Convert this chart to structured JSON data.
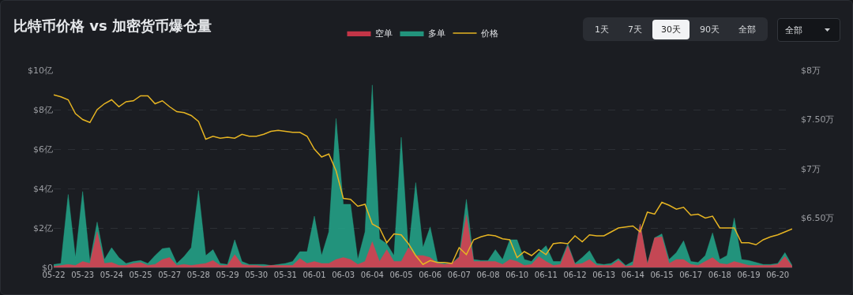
{
  "chart_data": {
    "type": "area",
    "title": "比特币价格 vs 加密货币爆仓量",
    "annotations": [
      "1天",
      "7天",
      "30天",
      "90天",
      "全部",
      "全部"
    ],
    "categories": [
      "05-22",
      null,
      null,
      null,
      "05-23",
      null,
      null,
      null,
      "05-24",
      null,
      null,
      null,
      "05-25",
      null,
      null,
      null,
      "05-27",
      null,
      null,
      null,
      "05-28",
      null,
      null,
      null,
      "05-29",
      null,
      null,
      null,
      "05-30",
      null,
      null,
      null,
      "05-31",
      null,
      null,
      null,
      "06-01",
      null,
      null,
      null,
      "06-03",
      null,
      null,
      null,
      "06-04",
      null,
      null,
      null,
      "06-05",
      null,
      null,
      null,
      "06-06",
      null,
      null,
      null,
      "06-07",
      null,
      null,
      null,
      "06-08",
      null,
      null,
      null,
      "06-10",
      null,
      null,
      null,
      "06-11",
      null,
      null,
      null,
      "06-12",
      null,
      null,
      null,
      "06-13",
      null,
      null,
      null,
      "06-14",
      null,
      null,
      null,
      "06-15",
      null,
      null,
      null,
      "06-17",
      null,
      null,
      null,
      "06-18",
      null,
      null,
      null,
      "06-19",
      null,
      null,
      null,
      "06-20",
      null,
      null
    ],
    "series": [
      {
        "name": "多单",
        "color": "#23a88c",
        "values": [
          0.15,
          0.2,
          3.7,
          0.5,
          3.85,
          0.3,
          2.3,
          0.4,
          1.0,
          0.5,
          0.2,
          0.3,
          0.35,
          0.2,
          0.6,
          0.95,
          1.0,
          0.2,
          0.55,
          1.0,
          3.9,
          0.6,
          0.9,
          0.2,
          0.15,
          1.4,
          0.3,
          0.15,
          0.15,
          0.15,
          0.1,
          0.15,
          0.2,
          0.3,
          0.8,
          0.8,
          2.6,
          0.6,
          1.8,
          7.55,
          3.2,
          3.2,
          0.4,
          1.8,
          9.25,
          1.45,
          1.2,
          0.6,
          6.6,
          0.8,
          4.3,
          1.0,
          2.05,
          0.3,
          0.2,
          0.2,
          0.55,
          3.45,
          0.4,
          0.35,
          0.35,
          0.9,
          0.4,
          1.4,
          1.4,
          0.4,
          0.3,
          0.75,
          1.1,
          0.3,
          0.3,
          1.2,
          0.2,
          0.5,
          0.85,
          0.2,
          0.15,
          0.2,
          0.45,
          0.1,
          0.3,
          2.2,
          0.2,
          1.5,
          1.7,
          0.4,
          0.75,
          1.35,
          0.3,
          0.25,
          0.6,
          1.75,
          0.4,
          0.6,
          2.5,
          0.4,
          0.35,
          0.25,
          0.15,
          0.15,
          0.2,
          0.75,
          0.1
        ]
      },
      {
        "name": "空单",
        "color": "#e03a4e",
        "values": [
          0.05,
          0.1,
          0.15,
          0.1,
          0.3,
          0.2,
          1.8,
          0.2,
          0.25,
          0.1,
          0.1,
          0.2,
          0.25,
          0.1,
          0.15,
          0.4,
          0.5,
          0.1,
          0.15,
          0.1,
          0.15,
          0.2,
          0.35,
          0.1,
          0.1,
          0.65,
          0.15,
          0.1,
          0.1,
          0.05,
          0.1,
          0.1,
          0.1,
          0.1,
          0.45,
          0.2,
          0.3,
          0.2,
          0.2,
          0.4,
          0.5,
          0.4,
          0.15,
          0.3,
          1.3,
          0.3,
          0.9,
          0.3,
          0.3,
          1.0,
          0.6,
          0.6,
          0.5,
          0.2,
          0.15,
          0.2,
          0.5,
          2.65,
          0.3,
          0.3,
          0.3,
          0.3,
          0.15,
          0.4,
          0.3,
          0.1,
          0.15,
          0.55,
          0.3,
          0.1,
          0.15,
          1.1,
          0.15,
          0.2,
          0.4,
          0.1,
          0.1,
          0.1,
          0.35,
          0.05,
          0.1,
          2.2,
          0.15,
          1.5,
          1.55,
          0.2,
          0.4,
          0.4,
          0.15,
          0.1,
          0.3,
          0.5,
          0.2,
          0.15,
          0.3,
          0.2,
          0.1,
          0.1,
          0.1,
          0.1,
          0.15,
          0.55,
          0.05
        ]
      },
      {
        "name": "价格",
        "color": "#e6b422",
        "type": "line",
        "axis": "y2",
        "values": [
          7.75,
          7.73,
          7.7,
          7.56,
          7.5,
          7.47,
          7.6,
          7.66,
          7.7,
          7.63,
          7.68,
          7.69,
          7.74,
          7.74,
          7.66,
          7.69,
          7.63,
          7.58,
          7.57,
          7.54,
          7.48,
          7.3,
          7.33,
          7.31,
          7.32,
          7.31,
          7.35,
          7.33,
          7.33,
          7.35,
          7.38,
          7.39,
          7.38,
          7.37,
          7.37,
          7.33,
          7.2,
          7.12,
          7.15,
          6.98,
          6.7,
          6.69,
          6.62,
          6.64,
          6.44,
          6.4,
          6.25,
          6.34,
          6.33,
          6.24,
          6.12,
          6.03,
          6.07,
          6.05,
          6.05,
          6.04,
          6.2,
          6.13,
          6.28,
          6.31,
          6.33,
          6.32,
          6.29,
          6.28,
          6.1,
          6.16,
          6.12,
          6.18,
          6.13,
          6.24,
          6.25,
          6.24,
          6.32,
          6.26,
          6.33,
          6.32,
          6.32,
          6.36,
          6.4,
          6.41,
          6.42,
          6.36,
          6.56,
          6.54,
          6.66,
          6.63,
          6.59,
          6.61,
          6.53,
          6.54,
          6.5,
          6.52,
          6.4,
          6.4,
          6.4,
          6.25,
          6.25,
          6.23,
          6.28,
          6.31,
          6.33,
          6.36,
          6.39
        ]
      }
    ],
    "ylim": [
      0,
      10
    ],
    "yticks": [
      {
        "value": 0,
        "label": "$0"
      },
      {
        "value": 2,
        "label": "$2亿"
      },
      {
        "value": 4,
        "label": "$4亿"
      },
      {
        "value": 6,
        "label": "$6亿"
      },
      {
        "value": 8,
        "label": "$8亿"
      },
      {
        "value": 10,
        "label": "$10亿"
      }
    ],
    "y2lim": [
      6,
      8
    ],
    "y2ticks": [
      {
        "value": 6.5,
        "label": "$6.50万"
      },
      {
        "value": 7,
        "label": "$7万"
      },
      {
        "value": 7.5,
        "label": "$7.50万"
      },
      {
        "value": 8,
        "label": "$8万"
      }
    ],
    "grid": "y",
    "legend": "top",
    "marker": "none",
    "line_style": "solid"
  }
}
